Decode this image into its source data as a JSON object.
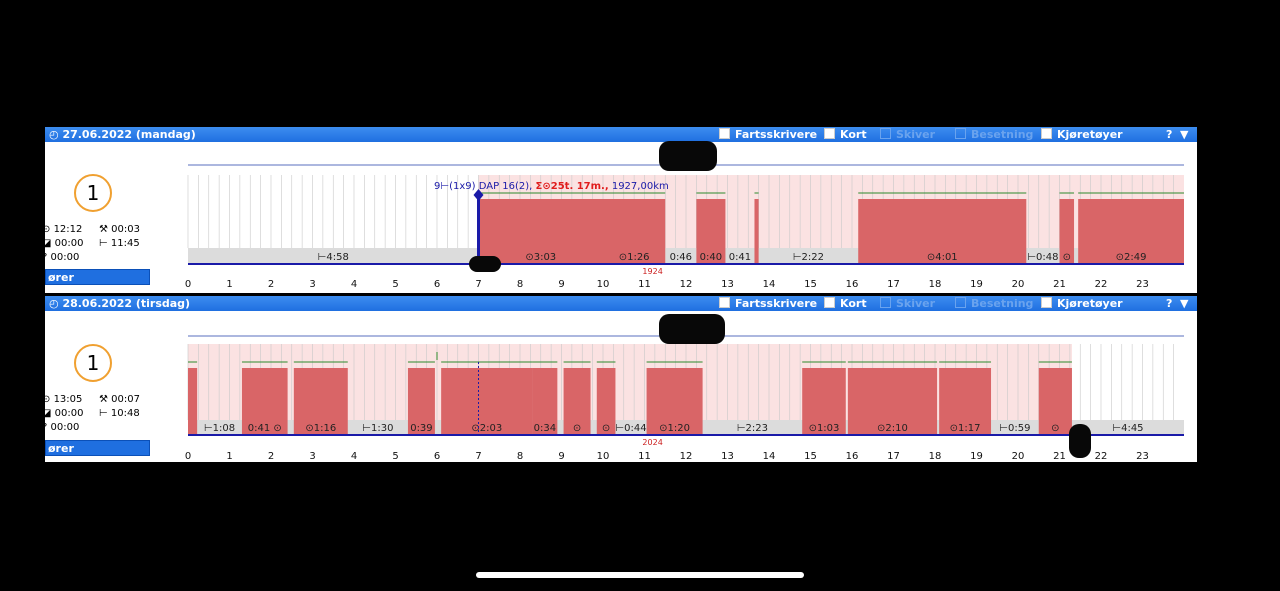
{
  "options": [
    {
      "label": "Fartsskrivere",
      "enabled": true
    },
    {
      "label": "Kort",
      "enabled": true
    },
    {
      "label": "Skiver",
      "enabled": false
    },
    {
      "label": "Besetning",
      "enabled": false
    },
    {
      "label": "Kjøretøyer",
      "enabled": true
    }
  ],
  "help_label": "?",
  "collapse_glyph": "▼",
  "days": [
    {
      "date": "27.06.2022 (mandag)",
      "number": "1",
      "stats": {
        "drive": "12:12",
        "work": "00:03",
        "avail": "00:00",
        "rest": "11:45",
        "other": "00:00"
      },
      "driver_button": "ører",
      "annotation_left": "9",
      "annotation_rest": "(1x9)",
      "annotation_dap": "DAP 16(2),",
      "annotation_sum": "Σ⊙25t. 17m.,",
      "annotation_km": "1927,00km",
      "small_marker": "1924",
      "periods": [
        {
          "type": "rest",
          "start": 0,
          "end": 7,
          "label": "⊢4:58"
        },
        {
          "type": "drive",
          "start": 7,
          "end": 10,
          "label": "⊙3:03"
        },
        {
          "type": "drive",
          "start": 10,
          "end": 11.5,
          "label": "⊙1:26"
        },
        {
          "type": "rest",
          "start": 11.5,
          "end": 12.25,
          "label": "0:46"
        },
        {
          "type": "drive",
          "start": 12.25,
          "end": 12.95,
          "label": "0:40"
        },
        {
          "type": "rest",
          "start": 12.95,
          "end": 13.65,
          "label": "0:41"
        },
        {
          "type": "drive",
          "start": 13.65,
          "end": 13.75,
          "label": ""
        },
        {
          "type": "rest",
          "start": 13.75,
          "end": 16.15,
          "label": "⊢2:22"
        },
        {
          "type": "drive",
          "start": 16.15,
          "end": 20.2,
          "label": "⊙4:01"
        },
        {
          "type": "rest",
          "start": 20.2,
          "end": 21,
          "label": "⊢0:48"
        },
        {
          "type": "drive",
          "start": 21,
          "end": 21.35,
          "label": "⊙"
        },
        {
          "type": "drive",
          "start": 21.45,
          "end": 24,
          "label": "⊙2:49"
        }
      ]
    },
    {
      "date": "28.06.2022 (tirsdag)",
      "number": "1",
      "stats": {
        "drive": "13:05",
        "work": "00:07",
        "avail": "00:00",
        "rest": "10:48",
        "other": "00:00"
      },
      "driver_button": "ører",
      "small_marker": "2024",
      "periods": [
        {
          "type": "drive",
          "start": 0,
          "end": 0.22,
          "label": ""
        },
        {
          "type": "rest",
          "start": 0.22,
          "end": 1.3,
          "label": "⊢1:08"
        },
        {
          "type": "drive",
          "start": 1.3,
          "end": 2.4,
          "label": "0:41 ⊙"
        },
        {
          "type": "drive",
          "start": 2.55,
          "end": 3.85,
          "label": "⊙1:16"
        },
        {
          "type": "rest",
          "start": 3.85,
          "end": 5.3,
          "label": "⊢1:30"
        },
        {
          "type": "drive",
          "start": 5.3,
          "end": 5.95,
          "label": "0:39"
        },
        {
          "type": "drive",
          "start": 6.1,
          "end": 8.3,
          "label": "⊙2:03"
        },
        {
          "type": "drive",
          "start": 8.3,
          "end": 8.9,
          "label": "0:34"
        },
        {
          "type": "drive",
          "start": 9.05,
          "end": 9.7,
          "label": "⊙"
        },
        {
          "type": "drive",
          "start": 9.85,
          "end": 10.3,
          "label": "⊙"
        },
        {
          "type": "rest",
          "start": 10.3,
          "end": 11.05,
          "label": "⊢0:44"
        },
        {
          "type": "drive",
          "start": 11.05,
          "end": 12.4,
          "label": "⊙1:20"
        },
        {
          "type": "rest",
          "start": 12.4,
          "end": 14.8,
          "label": "⊢2:23"
        },
        {
          "type": "drive",
          "start": 14.8,
          "end": 15.85,
          "label": "⊙1:03"
        },
        {
          "type": "drive",
          "start": 15.9,
          "end": 18.05,
          "label": "⊙2:10"
        },
        {
          "type": "drive",
          "start": 18.1,
          "end": 19.35,
          "label": "⊙1:17"
        },
        {
          "type": "rest",
          "start": 19.35,
          "end": 20.5,
          "label": "⊢0:59"
        },
        {
          "type": "drive",
          "start": 20.5,
          "end": 21.3,
          "label": "⊙"
        },
        {
          "type": "rest",
          "start": 21.3,
          "end": 24,
          "label": "⊢4:45"
        }
      ]
    }
  ],
  "hour_ticks": [
    "0",
    "1",
    "2",
    "3",
    "4",
    "5",
    "6",
    "7",
    "8",
    "9",
    "10",
    "11",
    "12",
    "13",
    "14",
    "15",
    "16",
    "17",
    "18",
    "19",
    "20",
    "21",
    "22",
    "23"
  ],
  "colors": {
    "header": "#1f6fe0",
    "drive": "#d96567",
    "drive_light": "#fbe2e2",
    "rest_band": "#dcdcdc",
    "line": "#1a1aa8",
    "work": "#2c8a2c"
  }
}
